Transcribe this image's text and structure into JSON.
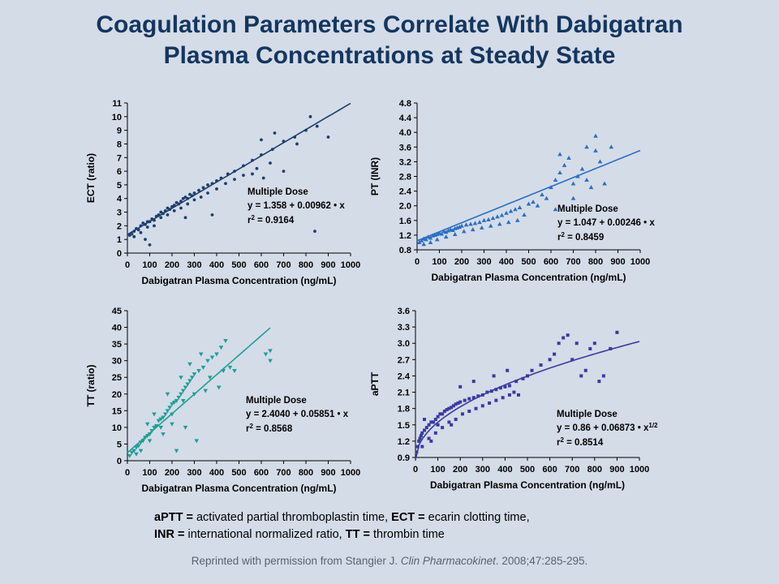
{
  "slide": {
    "title_line1": "Coagulation Parameters Correlate With Dabigatran",
    "title_line2": "Plasma Concentrations at Steady State"
  },
  "footnote": {
    "line1": [
      {
        "abbr": "aPTT =",
        "text": " activated partial thromboplastin time, "
      },
      {
        "abbr": "ECT =",
        "text": " ecarin clotting time,"
      }
    ],
    "line2": [
      {
        "abbr": "INR =",
        "text": " international  normalized  ratio, "
      },
      {
        "abbr": "TT =",
        "text": " thrombin time"
      }
    ]
  },
  "citation": {
    "prefix": "Reprinted with permission from Stangier J. ",
    "journal": "Clin Pharmacokinet",
    "suffix": ". 2008;47:285-295."
  },
  "chart_data": [
    {
      "type": "scatter",
      "panel": "top-left",
      "title": "",
      "xlabel": "Dabigatran Plasma Concentration (ng/mL)",
      "ylabel": "ECT (ratio)",
      "xlim": [
        0,
        1000
      ],
      "ylim": [
        0,
        11
      ],
      "xticks": [
        0,
        100,
        200,
        300,
        400,
        500,
        600,
        700,
        800,
        900,
        1000
      ],
      "yticks": [
        0,
        1,
        2,
        3,
        4,
        5,
        6,
        7,
        8,
        9,
        10,
        11
      ],
      "marker": "circle",
      "color": "#1c3f6e",
      "fit": {
        "kind": "linear",
        "a": 1.358,
        "b": 0.00962,
        "x_range": [
          0,
          1000
        ]
      },
      "annotation": {
        "line1": "Multiple Dose",
        "line2": "y = 1.358  + 0.00962  • x",
        "r2_prefix": "r",
        "r2_sup": "2",
        "r2_value": " = 0.9164"
      },
      "points": [
        [
          10,
          1.3
        ],
        [
          20,
          1.4
        ],
        [
          30,
          1.6
        ],
        [
          40,
          1.8
        ],
        [
          50,
          1.7
        ],
        [
          60,
          2.0
        ],
        [
          70,
          2.2
        ],
        [
          80,
          2.1
        ],
        [
          90,
          2.3
        ],
        [
          100,
          2.3
        ],
        [
          110,
          2.5
        ],
        [
          120,
          2.4
        ],
        [
          130,
          2.7
        ],
        [
          140,
          2.8
        ],
        [
          150,
          3.0
        ],
        [
          160,
          2.9
        ],
        [
          170,
          3.1
        ],
        [
          180,
          3.3
        ],
        [
          190,
          3.2
        ],
        [
          200,
          3.4
        ],
        [
          210,
          3.5
        ],
        [
          220,
          3.7
        ],
        [
          230,
          3.6
        ],
        [
          240,
          3.8
        ],
        [
          250,
          4.0
        ],
        [
          260,
          4.1
        ],
        [
          270,
          4.0
        ],
        [
          280,
          4.3
        ],
        [
          290,
          4.2
        ],
        [
          300,
          4.4
        ],
        [
          320,
          4.6
        ],
        [
          340,
          4.8
        ],
        [
          360,
          5.0
        ],
        [
          380,
          5.1
        ],
        [
          400,
          5.3
        ],
        [
          420,
          5.5
        ],
        [
          450,
          5.8
        ],
        [
          480,
          6.0
        ],
        [
          520,
          6.4
        ],
        [
          560,
          6.8
        ],
        [
          600,
          7.2
        ],
        [
          650,
          7.6
        ],
        [
          700,
          8.2
        ],
        [
          750,
          8.5
        ],
        [
          800,
          9.0
        ],
        [
          850,
          9.3
        ],
        [
          30,
          1.2
        ],
        [
          60,
          1.5
        ],
        [
          90,
          1.9
        ],
        [
          120,
          2.0
        ],
        [
          150,
          2.6
        ],
        [
          180,
          2.8
        ],
        [
          210,
          3.1
        ],
        [
          240,
          3.3
        ],
        [
          270,
          3.6
        ],
        [
          300,
          3.9
        ],
        [
          330,
          4.1
        ],
        [
          360,
          4.4
        ],
        [
          400,
          4.7
        ],
        [
          440,
          5.1
        ],
        [
          480,
          5.4
        ],
        [
          520,
          5.7
        ],
        [
          580,
          6.2
        ],
        [
          640,
          6.6
        ],
        [
          100,
          0.6
        ],
        [
          80,
          1.0
        ],
        [
          260,
          2.6
        ],
        [
          380,
          2.8
        ],
        [
          840,
          1.6
        ],
        [
          610,
          5.5
        ],
        [
          700,
          6.0
        ],
        [
          820,
          10.0
        ],
        [
          900,
          8.5
        ],
        [
          760,
          8.0
        ],
        [
          660,
          8.8
        ],
        [
          600,
          8.3
        ],
        [
          560,
          5.8
        ]
      ]
    },
    {
      "type": "scatter",
      "panel": "top-right",
      "title": "",
      "xlabel": "Dabigatran Plasma Concentration (ng/mL)",
      "ylabel": "PT (INR)",
      "xlim": [
        0,
        1000
      ],
      "ylim": [
        0.8,
        4.8
      ],
      "xticks": [
        0,
        100,
        200,
        300,
        400,
        500,
        600,
        700,
        800,
        900,
        1000
      ],
      "yticks": [
        0.8,
        1.2,
        1.6,
        2.0,
        2.4,
        2.8,
        3.2,
        3.6,
        4.0,
        4.4,
        4.8
      ],
      "marker": "triangle-up",
      "color": "#2a6fc4",
      "fit": {
        "kind": "linear",
        "a": 1.047,
        "b": 0.00246,
        "x_range": [
          0,
          1000
        ]
      },
      "annotation": {
        "line1": "Multiple Dose",
        "line2": "y = 1.047  + 0.00246  • x",
        "r2_prefix": "r",
        "r2_sup": "2",
        "r2_value": " = 0.8459"
      },
      "points": [
        [
          10,
          1.0
        ],
        [
          20,
          1.05
        ],
        [
          30,
          1.1
        ],
        [
          40,
          1.08
        ],
        [
          50,
          1.15
        ],
        [
          60,
          1.12
        ],
        [
          70,
          1.18
        ],
        [
          80,
          1.2
        ],
        [
          90,
          1.22
        ],
        [
          100,
          1.25
        ],
        [
          110,
          1.23
        ],
        [
          120,
          1.3
        ],
        [
          130,
          1.28
        ],
        [
          140,
          1.32
        ],
        [
          150,
          1.35
        ],
        [
          160,
          1.33
        ],
        [
          170,
          1.38
        ],
        [
          180,
          1.4
        ],
        [
          190,
          1.42
        ],
        [
          200,
          1.45
        ],
        [
          220,
          1.48
        ],
        [
          240,
          1.5
        ],
        [
          260,
          1.52
        ],
        [
          280,
          1.55
        ],
        [
          300,
          1.6
        ],
        [
          320,
          1.62
        ],
        [
          340,
          1.66
        ],
        [
          360,
          1.7
        ],
        [
          380,
          1.74
        ],
        [
          400,
          1.8
        ],
        [
          420,
          1.85
        ],
        [
          440,
          1.9
        ],
        [
          460,
          1.95
        ],
        [
          500,
          2.05
        ],
        [
          520,
          2.1
        ],
        [
          560,
          2.3
        ],
        [
          600,
          2.5
        ],
        [
          620,
          2.7
        ],
        [
          640,
          2.9
        ],
        [
          660,
          3.1
        ],
        [
          680,
          3.3
        ],
        [
          700,
          2.6
        ],
        [
          720,
          2.8
        ],
        [
          740,
          3.0
        ],
        [
          760,
          3.6
        ],
        [
          780,
          2.5
        ],
        [
          800,
          3.9
        ],
        [
          820,
          3.2
        ],
        [
          840,
          2.6
        ],
        [
          870,
          3.6
        ],
        [
          30,
          0.95
        ],
        [
          60,
          1.0
        ],
        [
          90,
          1.08
        ],
        [
          130,
          1.15
        ],
        [
          170,
          1.22
        ],
        [
          210,
          1.3
        ],
        [
          250,
          1.35
        ],
        [
          290,
          1.4
        ],
        [
          330,
          1.45
        ],
        [
          370,
          1.5
        ],
        [
          410,
          1.55
        ],
        [
          450,
          1.6
        ],
        [
          480,
          1.75
        ],
        [
          540,
          2.0
        ],
        [
          580,
          2.2
        ],
        [
          620,
          1.9
        ],
        [
          700,
          2.2
        ],
        [
          760,
          2.7
        ],
        [
          800,
          3.5
        ],
        [
          640,
          3.4
        ]
      ]
    },
    {
      "type": "scatter",
      "panel": "bottom-left",
      "title": "",
      "xlabel": "Dabigatran Plasma Concentration (ng/mL)",
      "ylabel": "TT (ratio)",
      "xlim": [
        0,
        1000
      ],
      "ylim": [
        0,
        45
      ],
      "xticks": [
        0,
        100,
        200,
        300,
        400,
        500,
        600,
        700,
        800,
        900,
        1000
      ],
      "yticks": [
        0,
        5,
        10,
        15,
        20,
        25,
        30,
        35,
        40,
        45
      ],
      "marker": "triangle-down",
      "color": "#1f9e96",
      "fit": {
        "kind": "linear",
        "a": 2.404,
        "b": 0.05851,
        "x_range": [
          0,
          640
        ]
      },
      "annotation": {
        "line1": "Multiple Dose",
        "line2": "y = 2.4040  + 0.05851  • x",
        "r2_prefix": "r",
        "r2_sup": "2",
        "r2_value": " = 0.8568"
      },
      "points": [
        [
          10,
          1.5
        ],
        [
          20,
          2.5
        ],
        [
          30,
          3.0
        ],
        [
          40,
          4.0
        ],
        [
          50,
          4.5
        ],
        [
          60,
          5.5
        ],
        [
          70,
          6.0
        ],
        [
          80,
          7.0
        ],
        [
          90,
          7.5
        ],
        [
          100,
          8.0
        ],
        [
          110,
          9.0
        ],
        [
          120,
          10.0
        ],
        [
          130,
          10.5
        ],
        [
          140,
          12.0
        ],
        [
          150,
          12.5
        ],
        [
          160,
          13.0
        ],
        [
          170,
          14.0
        ],
        [
          180,
          15.0
        ],
        [
          190,
          16.0
        ],
        [
          200,
          17.0
        ],
        [
          210,
          17.5
        ],
        [
          220,
          18.0
        ],
        [
          230,
          19.0
        ],
        [
          240,
          20.0
        ],
        [
          250,
          21.0
        ],
        [
          260,
          22.0
        ],
        [
          270,
          23.0
        ],
        [
          280,
          24.0
        ],
        [
          290,
          25.0
        ],
        [
          300,
          26.0
        ],
        [
          320,
          27.0
        ],
        [
          340,
          28.0
        ],
        [
          360,
          30.0
        ],
        [
          380,
          31.0
        ],
        [
          400,
          32.0
        ],
        [
          420,
          34.0
        ],
        [
          440,
          36.0
        ],
        [
          460,
          28.0
        ],
        [
          480,
          27.0
        ],
        [
          300,
          20.0
        ],
        [
          250,
          18.0
        ],
        [
          200,
          14.0
        ],
        [
          150,
          10.0
        ],
        [
          100,
          6.0
        ],
        [
          60,
          3.0
        ],
        [
          40,
          2.0
        ],
        [
          120,
          14.0
        ],
        [
          180,
          20.0
        ],
        [
          240,
          25.0
        ],
        [
          280,
          29.0
        ],
        [
          330,
          32.0
        ],
        [
          370,
          25.0
        ],
        [
          410,
          22.0
        ],
        [
          220,
          3.0
        ],
        [
          310,
          6.0
        ],
        [
          260,
          10.0
        ],
        [
          620,
          32.0
        ],
        [
          640,
          30.0
        ],
        [
          640,
          33.0
        ],
        [
          200,
          11.0
        ],
        [
          160,
          8.0
        ],
        [
          350,
          21.0
        ],
        [
          430,
          27.0
        ],
        [
          90,
          11.0
        ]
      ]
    },
    {
      "type": "scatter",
      "panel": "bottom-right",
      "title": "",
      "xlabel": "Dabigatran Plasma Concentration (ng/mL)",
      "ylabel": "aPTT",
      "xlim": [
        0,
        1000
      ],
      "ylim": [
        0.9,
        3.6
      ],
      "xticks": [
        0,
        100,
        200,
        300,
        400,
        500,
        600,
        700,
        800,
        900,
        1000
      ],
      "yticks": [
        0.9,
        1.2,
        1.5,
        1.8,
        2.1,
        2.4,
        2.7,
        3.0,
        3.3,
        3.6
      ],
      "marker": "square",
      "color": "#3a3aa0",
      "fit": {
        "kind": "sqrt",
        "a": 0.86,
        "b": 0.06873,
        "x_range": [
          0,
          1000
        ]
      },
      "annotation": {
        "line1": "Multiple Dose",
        "line2": "y = 0.86  + 0.06873  • x",
        "line2_sup": "1/2",
        "r2_prefix": "r",
        "r2_sup": "2",
        "r2_value": " = 0.8514"
      },
      "points": [
        [
          5,
          1.0
        ],
        [
          10,
          1.1
        ],
        [
          15,
          1.2
        ],
        [
          20,
          1.25
        ],
        [
          25,
          1.3
        ],
        [
          30,
          1.35
        ],
        [
          40,
          1.4
        ],
        [
          50,
          1.45
        ],
        [
          60,
          1.5
        ],
        [
          70,
          1.55
        ],
        [
          80,
          1.55
        ],
        [
          90,
          1.6
        ],
        [
          100,
          1.65
        ],
        [
          110,
          1.7
        ],
        [
          120,
          1.7
        ],
        [
          130,
          1.75
        ],
        [
          140,
          1.78
        ],
        [
          150,
          1.8
        ],
        [
          160,
          1.82
        ],
        [
          170,
          1.85
        ],
        [
          180,
          1.88
        ],
        [
          190,
          1.9
        ],
        [
          200,
          1.92
        ],
        [
          220,
          1.95
        ],
        [
          240,
          1.98
        ],
        [
          260,
          2.0
        ],
        [
          280,
          2.03
        ],
        [
          300,
          2.05
        ],
        [
          320,
          2.1
        ],
        [
          340,
          2.12
        ],
        [
          360,
          2.15
        ],
        [
          380,
          2.18
        ],
        [
          400,
          2.2
        ],
        [
          420,
          2.22
        ],
        [
          440,
          2.1
        ],
        [
          460,
          2.05
        ],
        [
          500,
          2.4
        ],
        [
          520,
          2.5
        ],
        [
          560,
          2.6
        ],
        [
          600,
          2.7
        ],
        [
          620,
          2.8
        ],
        [
          640,
          3.0
        ],
        [
          660,
          3.1
        ],
        [
          680,
          3.15
        ],
        [
          700,
          2.7
        ],
        [
          720,
          3.0
        ],
        [
          740,
          2.4
        ],
        [
          760,
          2.5
        ],
        [
          780,
          2.9
        ],
        [
          800,
          3.0
        ],
        [
          820,
          2.3
        ],
        [
          840,
          2.4
        ],
        [
          870,
          2.9
        ],
        [
          900,
          3.2
        ],
        [
          30,
          1.1
        ],
        [
          60,
          1.25
        ],
        [
          90,
          1.35
        ],
        [
          120,
          1.45
        ],
        [
          150,
          1.55
        ],
        [
          180,
          1.6
        ],
        [
          210,
          1.7
        ],
        [
          240,
          1.75
        ],
        [
          270,
          1.8
        ],
        [
          300,
          1.85
        ],
        [
          330,
          1.9
        ],
        [
          360,
          1.95
        ],
        [
          390,
          2.0
        ],
        [
          420,
          2.05
        ],
        [
          450,
          2.3
        ],
        [
          480,
          2.35
        ],
        [
          40,
          1.6
        ],
        [
          100,
          1.5
        ],
        [
          200,
          2.2
        ],
        [
          260,
          2.3
        ],
        [
          350,
          2.4
        ],
        [
          410,
          2.5
        ],
        [
          160,
          1.5
        ],
        [
          70,
          1.2
        ]
      ]
    }
  ]
}
